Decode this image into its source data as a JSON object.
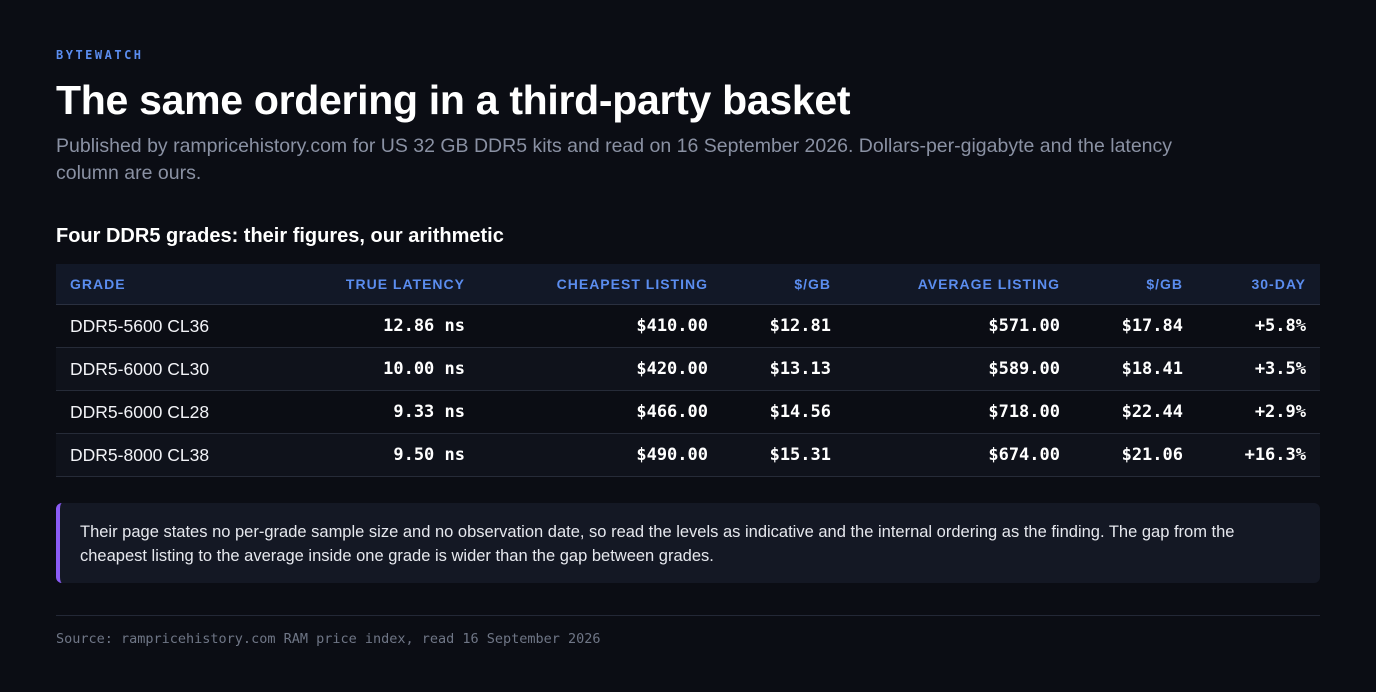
{
  "header": {
    "kicker": "BYTEWATCH",
    "title": "The same ordering in a third-party basket",
    "subtitle": "Published by rampricehistory.com for US 32 GB DDR5 kits and read on 16 September 2026. Dollars-per-gigabyte and the latency column are ours."
  },
  "table": {
    "title": "Four DDR5 grades: their figures, our arithmetic",
    "columns": [
      "GRADE",
      "TRUE LATENCY",
      "CHEAPEST LISTING",
      "$/GB",
      "AVERAGE LISTING",
      "$/GB",
      "30-DAY"
    ],
    "rows": [
      [
        "DDR5-5600 CL36",
        "12.86 ns",
        "$410.00",
        "$12.81",
        "$571.00",
        "$17.84",
        "+5.8%"
      ],
      [
        "DDR5-6000 CL30",
        "10.00 ns",
        "$420.00",
        "$13.13",
        "$589.00",
        "$18.41",
        "+3.5%"
      ],
      [
        "DDR5-6000 CL28",
        "9.33 ns",
        "$466.00",
        "$14.56",
        "$718.00",
        "$22.44",
        "+2.9%"
      ],
      [
        "DDR5-8000 CL38",
        "9.50 ns",
        "$490.00",
        "$15.31",
        "$674.00",
        "$21.06",
        "+16.3%"
      ]
    ]
  },
  "note": {
    "text": "Their page states no per-grade sample size and no observation date, so read the levels as indicative and the internal ordering as the finding. The gap from the cheapest listing to the average inside one grade is wider than the gap between grades."
  },
  "footer": {
    "source": "Source: rampricehistory.com RAM price index, read 16 September 2026"
  },
  "colors": {
    "background": "#0b0d14",
    "accent_blue": "#5b8def",
    "callout_bar": "#8b5cf6"
  }
}
